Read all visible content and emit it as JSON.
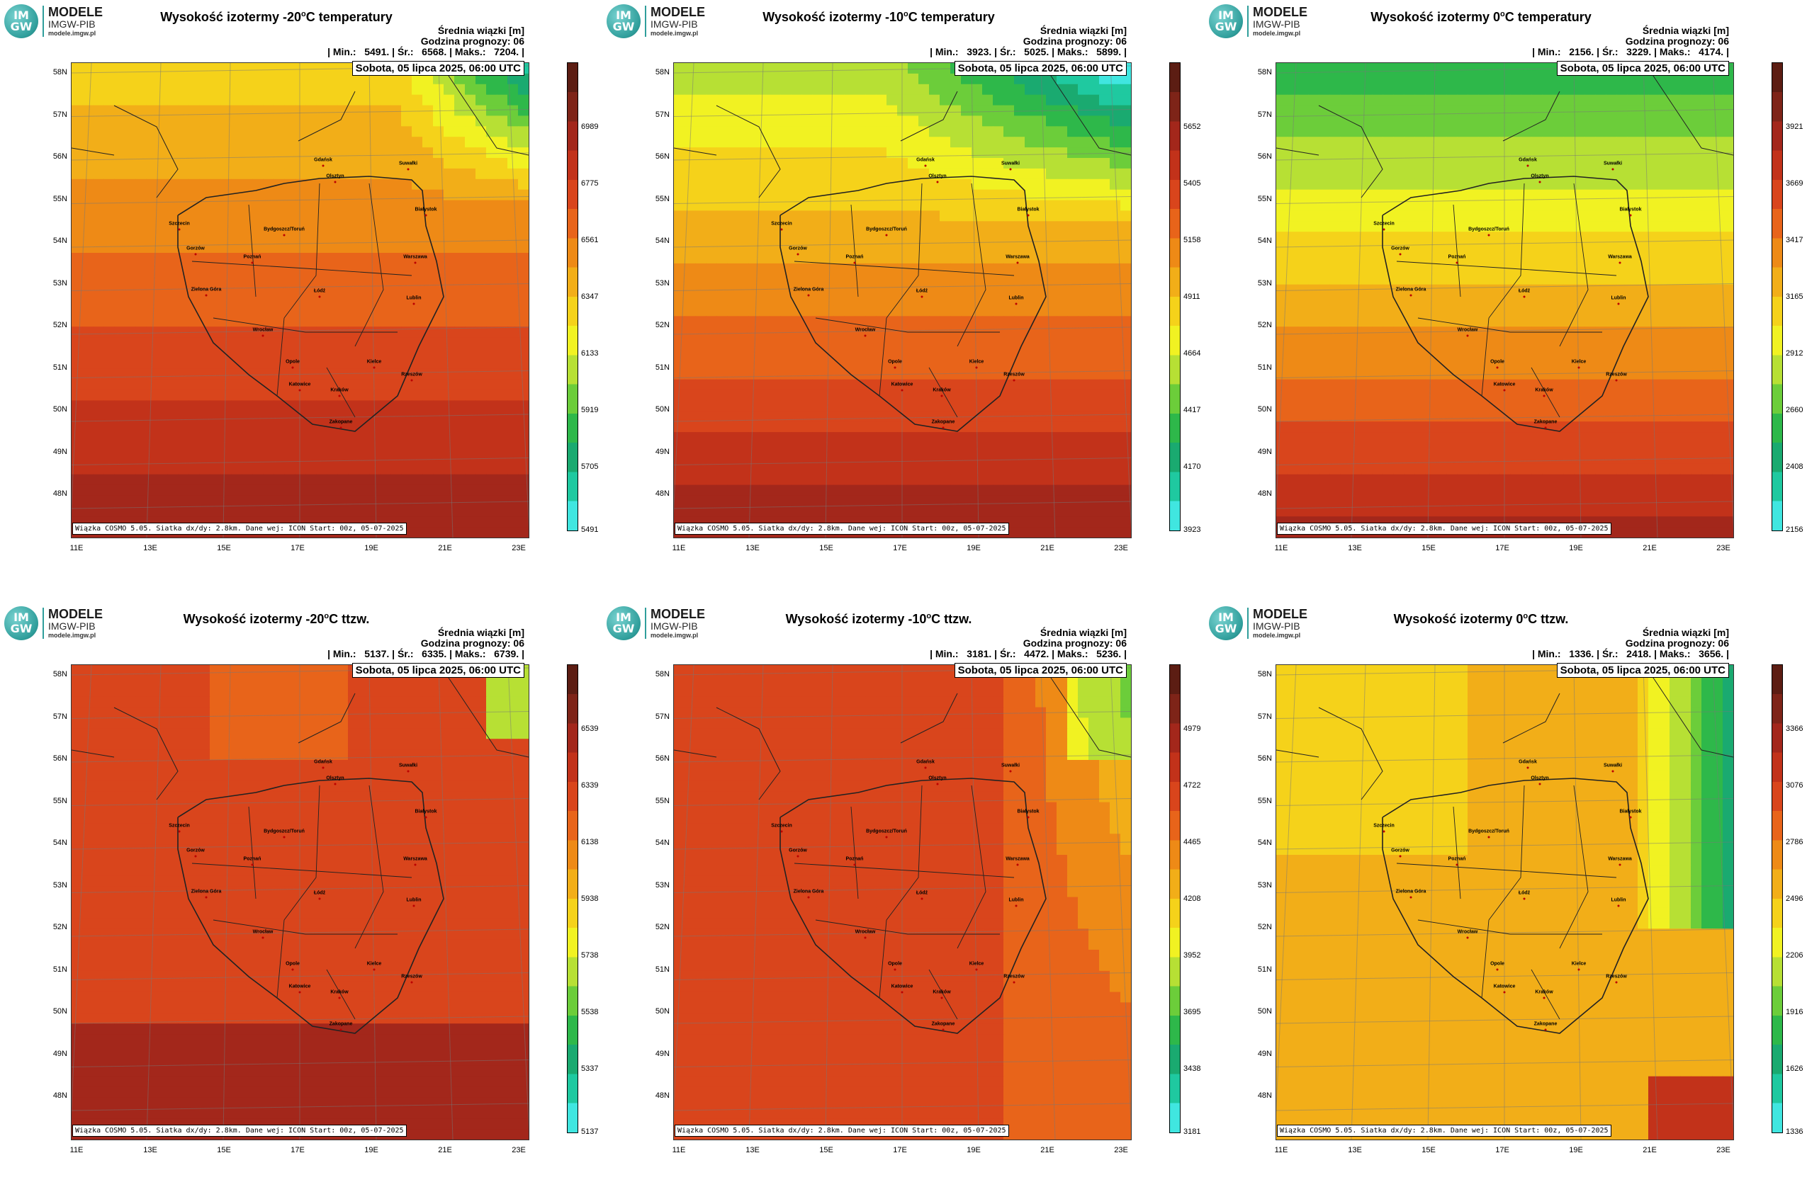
{
  "logo": {
    "line1": "MODELE",
    "line2": "IMGW-PIB",
    "line3": "modele.imgw.pl",
    "mark_top": "IM",
    "mark_bottom": "GW"
  },
  "common": {
    "units_label": "Średnia wiązki [m]",
    "forecast_label": "Godzina prognozy: 06",
    "date_label": "Sobota, 05 lipca 2025, 06:00 UTC",
    "footer": "Wiązka COSMO 5.05. Siatka dx/dy: 2.8km. Dane wej: ICON Start: 00z, 05-07-2025",
    "lat_labels": [
      "58N",
      "57N",
      "56N",
      "55N",
      "54N",
      "53N",
      "52N",
      "51N",
      "50N",
      "49N",
      "48N"
    ],
    "lon_labels": [
      "11E",
      "13E",
      "15E",
      "17E",
      "19E",
      "21E",
      "23E"
    ],
    "cities": [
      "Gdańsk",
      "Olsztyn",
      "Suwałki",
      "Białystok",
      "Szczecin",
      "Gorzów",
      "Bydgoszcz/Toruń",
      "Poznań",
      "Warszawa",
      "Zielona Góra",
      "Łódź",
      "Lublin",
      "Wrocław",
      "Opole",
      "Kielce",
      "Katowice",
      "Kraków",
      "Rzeszów",
      "Zakopane"
    ],
    "palette": [
      "#40e6e0",
      "#1fc9a0",
      "#1aaa70",
      "#2eb84a",
      "#6ccd3a",
      "#b7e034",
      "#f1f222",
      "#f5d21a",
      "#f2ae18",
      "#ee8a16",
      "#e8641a",
      "#d9451c",
      "#c2321a",
      "#a3271b",
      "#7e2418",
      "#5c1d13"
    ]
  },
  "panels": [
    {
      "title_prefix": "Wysokość izotermy -20",
      "title_deg": "o",
      "title_suffix": "C temperatury",
      "stats": "| Min.:   5491. | Śr.:   6568. | Maks.:   7204. |",
      "cbar_ticks": [
        "6989",
        "6775",
        "6561",
        "6347",
        "6133",
        "5919",
        "5705",
        "5491"
      ],
      "field": "t20"
    },
    {
      "title_prefix": "Wysokość izotermy -10",
      "title_deg": "o",
      "title_suffix": "C temperatury",
      "stats": "| Min.:   3923. | Śr.:   5025. | Maks.:   5899. |",
      "cbar_ticks": [
        "5652",
        "5405",
        "5158",
        "4911",
        "4664",
        "4417",
        "4170",
        "3923"
      ],
      "field": "t10"
    },
    {
      "title_prefix": "Wysokość izotermy 0",
      "title_deg": "o",
      "title_suffix": "C temperatury",
      "stats": "| Min.:   2156. | Śr.:   3229. | Maks.:   4174. |",
      "cbar_ticks": [
        "3921",
        "3669",
        "3417",
        "3165",
        "2912",
        "2660",
        "2408",
        "2156"
      ],
      "field": "t0"
    },
    {
      "title_prefix": "Wysokość izotermy -20",
      "title_deg": "o",
      "title_suffix": "C ttzw.",
      "stats": "| Min.:   5137. | Śr.:   6335. | Maks.:   6739. |",
      "cbar_ticks": [
        "6539",
        "6339",
        "6138",
        "5938",
        "5738",
        "5538",
        "5337",
        "5137"
      ],
      "field": "w20"
    },
    {
      "title_prefix": "Wysokość izotermy -10",
      "title_deg": "o",
      "title_suffix": "C ttzw.",
      "stats": "| Min.:   3181. | Śr.:   4472. | Maks.:   5236. |",
      "cbar_ticks": [
        "4979",
        "4722",
        "4465",
        "4208",
        "3952",
        "3695",
        "3438",
        "3181"
      ],
      "field": "w10"
    },
    {
      "title_prefix": "Wysokość izotermy 0",
      "title_deg": "o",
      "title_suffix": "C ttzw.",
      "stats": "| Min.:   1336. | Śr.:   2418. | Maks.:   3656. |",
      "cbar_ticks": [
        "3366",
        "3076",
        "2786",
        "2496",
        "2206",
        "1916",
        "1626",
        "1336"
      ],
      "field": "w0"
    }
  ]
}
